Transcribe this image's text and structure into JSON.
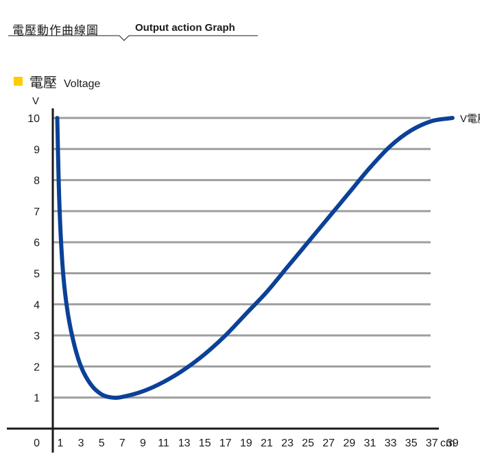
{
  "header": {
    "title_zh": "電壓動作曲線圖",
    "title_en": "Output action Graph"
  },
  "legend": {
    "label_zh": "電壓",
    "label_en": "Voltage",
    "swatch_color": "#ffcc00"
  },
  "chart_data": {
    "type": "line",
    "title": "",
    "ylabel": "V",
    "xlabel": "cm",
    "ylim": [
      0,
      10
    ],
    "xlim": [
      0,
      39
    ],
    "x_ticks": [
      1,
      3,
      5,
      7,
      9,
      11,
      13,
      15,
      17,
      19,
      21,
      23,
      25,
      27,
      29,
      31,
      33,
      35,
      37,
      39
    ],
    "y_ticks": [
      1,
      2,
      3,
      4,
      5,
      6,
      7,
      8,
      9,
      10
    ],
    "origin_label": "0",
    "grid": true,
    "series": [
      {
        "name": "V電壓",
        "color": "#0b4197",
        "x": [
          0.7,
          0.9,
          1.2,
          1.6,
          2.2,
          3.0,
          4.0,
          5.0,
          6.0,
          7.0,
          9.0,
          11.0,
          13.0,
          15.0,
          17.0,
          19.0,
          21.0,
          23.0,
          25.0,
          27.0,
          29.0,
          31.0,
          33.0,
          35.0,
          37.0,
          39.0
        ],
        "y": [
          10.0,
          7.3,
          5.3,
          4.0,
          2.9,
          2.0,
          1.4,
          1.1,
          1.0,
          1.02,
          1.2,
          1.5,
          1.9,
          2.4,
          3.0,
          3.7,
          4.4,
          5.2,
          6.0,
          6.8,
          7.6,
          8.4,
          9.1,
          9.6,
          9.9,
          10.0
        ]
      }
    ]
  }
}
